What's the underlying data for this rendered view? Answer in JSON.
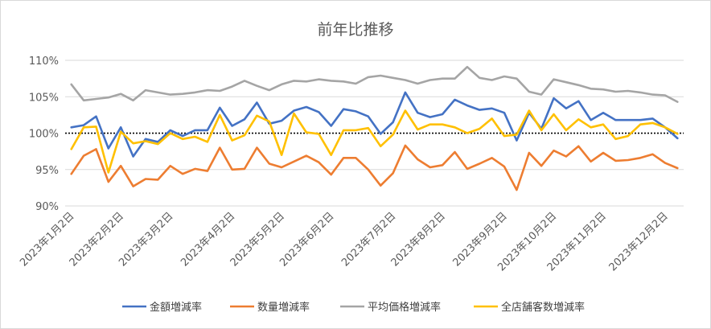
{
  "chart_data": {
    "type": "line",
    "title": "前年比推移",
    "xlabel": "",
    "ylabel": "",
    "ylim": [
      90,
      111
    ],
    "yticks": [
      90,
      95,
      100,
      105,
      110
    ],
    "ytick_labels": [
      "90%",
      "95%",
      "100%",
      "105%",
      "110%"
    ],
    "x_tick_labels": [
      "2023年1月2日",
      "2023年2月2日",
      "2023年3月2日",
      "2023年4月2日",
      "2023年5月2日",
      "2023年6月2日",
      "2023年7月2日",
      "2023年8月2日",
      "2023年9月2日",
      "2023年10月2日",
      "2023年11月2日",
      "2023年12月2日"
    ],
    "x_tick_index": [
      0,
      4,
      8,
      13,
      17,
      21,
      26,
      30,
      35,
      39,
      43,
      48
    ],
    "reference_line": 100,
    "legend_position": "bottom",
    "grid": "horizontal",
    "series": [
      {
        "name": "金額増減率",
        "color": "#4472c4",
        "values": [
          100.8,
          101.1,
          102.3,
          97.9,
          100.8,
          96.8,
          99.2,
          98.8,
          100.4,
          99.6,
          100.4,
          100.4,
          103.5,
          101.0,
          101.9,
          104.2,
          101.3,
          101.7,
          103.1,
          103.6,
          102.9,
          101.0,
          103.3,
          103.0,
          102.3,
          99.9,
          101.5,
          105.6,
          102.8,
          102.2,
          102.6,
          104.6,
          103.8,
          103.2,
          103.4,
          102.8,
          99.0,
          102.8,
          100.6,
          104.8,
          103.4,
          104.4,
          101.8,
          102.8,
          101.8,
          101.8,
          101.8,
          102.0,
          100.8,
          99.3
        ]
      },
      {
        "name": "数量増減率",
        "color": "#ed7d31",
        "values": [
          94.4,
          96.9,
          97.8,
          93.3,
          95.5,
          92.7,
          93.7,
          93.6,
          95.5,
          94.4,
          95.1,
          94.8,
          98.0,
          95.0,
          95.1,
          98.0,
          95.8,
          95.3,
          96.1,
          96.9,
          96.0,
          94.3,
          96.6,
          96.6,
          95.0,
          92.8,
          94.5,
          98.3,
          96.4,
          95.3,
          95.6,
          97.4,
          95.1,
          95.8,
          96.6,
          95.4,
          92.2,
          97.3,
          95.5,
          97.6,
          96.8,
          98.2,
          96.1,
          97.3,
          96.2,
          96.3,
          96.6,
          97.1,
          95.9,
          95.2
        ]
      },
      {
        "name": "平均価格増減率",
        "color": "#a5a5a5",
        "values": [
          106.7,
          104.5,
          104.7,
          104.9,
          105.4,
          104.5,
          105.9,
          105.6,
          105.3,
          105.4,
          105.6,
          105.9,
          105.8,
          106.4,
          107.2,
          106.5,
          105.9,
          106.7,
          107.2,
          107.1,
          107.4,
          107.2,
          107.1,
          106.8,
          107.7,
          107.9,
          107.6,
          107.3,
          106.8,
          107.3,
          107.5,
          107.5,
          109.1,
          107.6,
          107.3,
          107.8,
          107.5,
          105.7,
          105.3,
          107.4,
          107.0,
          106.6,
          106.1,
          106.0,
          105.7,
          105.8,
          105.6,
          105.3,
          105.2,
          104.3
        ]
      },
      {
        "name": "全店舗客数増減率",
        "color": "#ffc000",
        "values": [
          97.8,
          100.8,
          100.9,
          94.6,
          100.2,
          98.6,
          98.9,
          98.5,
          100.0,
          99.2,
          99.5,
          98.8,
          102.5,
          99.0,
          99.7,
          102.4,
          101.6,
          97.0,
          102.7,
          100.1,
          99.9,
          97.0,
          100.4,
          100.4,
          100.7,
          98.2,
          99.8,
          103.1,
          100.5,
          101.2,
          101.2,
          100.8,
          100.0,
          100.6,
          102.0,
          99.6,
          99.8,
          103.1,
          100.4,
          102.6,
          100.4,
          101.9,
          100.8,
          101.2,
          99.2,
          99.6,
          101.2,
          101.4,
          100.8,
          99.9
        ]
      }
    ]
  }
}
